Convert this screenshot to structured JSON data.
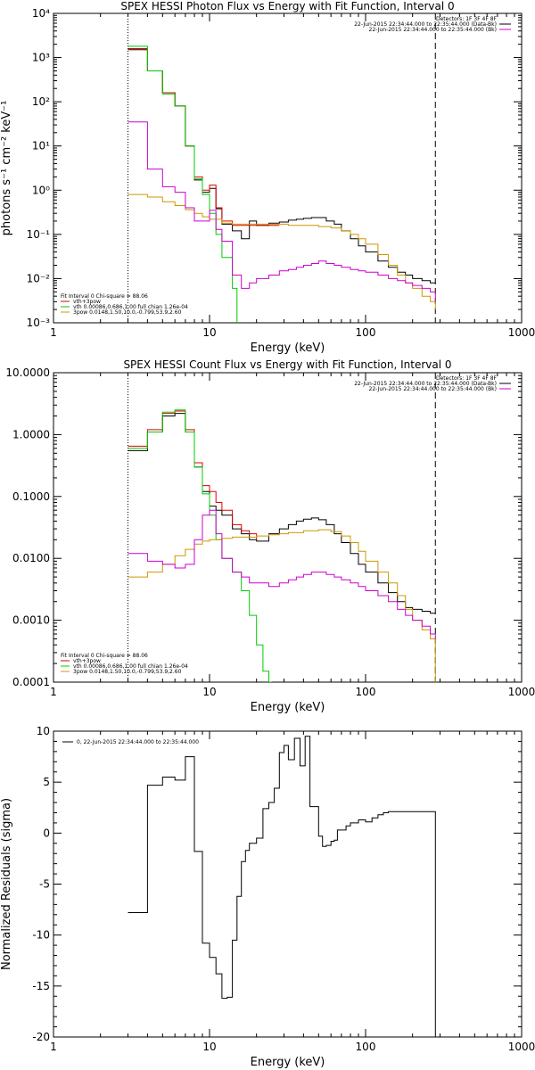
{
  "chart_data": [
    {
      "type": "line",
      "title": "SPEX HESSI Photon Flux vs Energy with Fit Function, Interval 0",
      "xlabel": "Energy (keV)",
      "ylabel": "photons s⁻¹ cm⁻² keV⁻¹",
      "xscale": "log",
      "yscale": "log",
      "xlim": [
        1,
        1000
      ],
      "ylim": [
        0.001,
        10000
      ],
      "xticks": [
        {
          "v": 1,
          "label": "1"
        },
        {
          "v": 10,
          "label": "10"
        },
        {
          "v": 100,
          "label": "100"
        },
        {
          "v": 1000,
          "label": "1000"
        }
      ],
      "yticks": [
        {
          "v": 0.001,
          "label": "10⁻³"
        },
        {
          "v": 0.01,
          "label": "10⁻²"
        },
        {
          "v": 0.1,
          "label": "10⁻¹"
        },
        {
          "v": 1,
          "label": "10⁰"
        },
        {
          "v": 10,
          "label": "10¹"
        },
        {
          "v": 100,
          "label": "10²"
        },
        {
          "v": 1000,
          "label": "10³"
        },
        {
          "v": 10000,
          "label": "10⁴"
        }
      ],
      "vlines": [
        {
          "x": 3,
          "style": "dotted"
        },
        {
          "x": 280,
          "style": "dashed"
        }
      ],
      "header_text": [
        "Detectors: 1F 3F 4F 8F",
        "22-Jun-2015 22:34:44.000 to 22:35:44.000 (Data-Bk)",
        "22-Jun-2015 22:34:44.000 to 22:35:44.000 (Bk)"
      ],
      "fit_text": [
        "Fit Interval 0   Chi-square = 88.06",
        "vth+3pow",
        "vth 0.00086,0.686,1.00  full chian 1.26e-04",
        "3pow 0.0148,1.50,10.0,-0.799,53.9,2.60"
      ],
      "series": [
        {
          "name": "",
          "color": "#000000",
          "x": [
            3,
            4,
            5,
            6,
            7,
            8,
            9,
            10,
            11,
            12,
            14,
            16,
            18,
            20,
            24,
            28,
            32,
            36,
            40,
            45,
            50,
            56,
            63,
            70,
            80,
            90,
            100,
            120,
            140,
            160,
            180,
            200,
            230,
            260,
            280
          ],
          "y": [
            1500,
            500,
            160,
            80,
            10,
            1.7,
            0.9,
            1.1,
            0.38,
            0.17,
            0.12,
            0.08,
            0.2,
            0.16,
            0.18,
            0.19,
            0.21,
            0.22,
            0.23,
            0.24,
            0.24,
            0.2,
            0.17,
            0.12,
            0.08,
            0.055,
            0.04,
            0.025,
            0.018,
            0.014,
            0.012,
            0.01,
            0.009,
            0.008,
            0.008
          ]
        },
        {
          "name": "",
          "color": "#dd0000",
          "x": [
            3,
            4,
            5,
            6,
            7,
            8,
            9,
            10,
            11,
            12,
            14,
            16,
            18,
            20,
            24,
            28
          ],
          "y": [
            1600,
            500,
            160,
            80,
            10,
            2,
            1.0,
            1.3,
            0.4,
            0.2,
            0.16,
            0.16,
            0.16,
            0.16,
            0.16,
            0.16
          ]
        },
        {
          "name": "",
          "color": "#00cc00",
          "x": [
            3,
            4,
            5,
            6,
            7,
            8,
            9,
            10,
            11,
            12,
            14,
            15
          ],
          "y": [
            1800,
            500,
            150,
            80,
            10,
            1.8,
            0.8,
            0.3,
            0.1,
            0.03,
            0.006,
            0.001
          ]
        },
        {
          "name": "",
          "color": "#cc9900",
          "x": [
            3,
            4,
            5,
            6,
            7,
            8,
            9,
            10,
            12,
            14,
            16,
            20,
            24,
            28,
            32,
            40,
            50,
            60,
            70,
            80,
            90,
            100,
            120,
            140,
            160,
            180,
            200,
            230,
            260,
            280
          ],
          "y": [
            0.8,
            0.7,
            0.55,
            0.45,
            0.36,
            0.3,
            0.25,
            0.22,
            0.18,
            0.17,
            0.17,
            0.17,
            0.17,
            0.17,
            0.16,
            0.16,
            0.15,
            0.14,
            0.12,
            0.1,
            0.08,
            0.06,
            0.035,
            0.02,
            0.012,
            0.008,
            0.006,
            0.004,
            0.003,
            0.002
          ]
        },
        {
          "name": "",
          "color": "#cc00cc",
          "x": [
            3,
            4,
            5,
            6,
            7,
            8,
            9,
            10,
            11,
            12,
            14,
            16,
            18,
            20,
            24,
            28,
            32,
            36,
            40,
            45,
            50,
            56,
            63,
            70,
            80,
            90,
            100,
            120,
            140,
            160,
            180,
            200,
            230,
            260,
            280
          ],
          "y": [
            35,
            3,
            1.2,
            0.9,
            0.4,
            0.2,
            0.2,
            0.35,
            0.13,
            0.07,
            0.012,
            0.006,
            0.008,
            0.01,
            0.012,
            0.015,
            0.016,
            0.018,
            0.02,
            0.022,
            0.025,
            0.022,
            0.02,
            0.018,
            0.016,
            0.015,
            0.014,
            0.012,
            0.01,
            0.009,
            0.008,
            0.007,
            0.006,
            0.005,
            0.003
          ]
        }
      ]
    },
    {
      "type": "line",
      "title": "SPEX HESSI Count Flux vs Energy with Fit Function, Interval 0",
      "xlabel": "Energy (keV)",
      "ylabel": "",
      "xscale": "log",
      "yscale": "log",
      "xlim": [
        1,
        1000
      ],
      "ylim": [
        0.0001,
        10
      ],
      "xticks": [
        {
          "v": 1,
          "label": "1"
        },
        {
          "v": 10,
          "label": "10"
        },
        {
          "v": 100,
          "label": "100"
        },
        {
          "v": 1000,
          "label": "1000"
        }
      ],
      "yticks": [
        {
          "v": 0.0001,
          "label": "0.0001"
        },
        {
          "v": 0.001,
          "label": "0.0010"
        },
        {
          "v": 0.01,
          "label": "0.0100"
        },
        {
          "v": 0.1,
          "label": "0.1000"
        },
        {
          "v": 1,
          "label": "1.0000"
        },
        {
          "v": 10,
          "label": "10.0000"
        }
      ],
      "vlines": [
        {
          "x": 3,
          "style": "dotted"
        },
        {
          "x": 280,
          "style": "dashed"
        }
      ],
      "header_text": [
        "Detectors: 1F 3F 4F 8F",
        "22-Jun-2015 22:34:44.000 to 22:35:44.000 (Data-Bk)",
        "22-Jun-2015 22:34:44.000 to 22:35:44.000 (Bk)"
      ],
      "fit_text": [
        "Fit Interval 0   Chi-square = 88.06",
        "vth+3pow",
        "vth 0.00086,0.686,1.00  full chian 1.26e-04",
        "3pow 0.0148,1.50,10.0,-0.799,53.9,2.60"
      ],
      "series": [
        {
          "name": "",
          "color": "#000000",
          "x": [
            3,
            4,
            5,
            6,
            7,
            8,
            9,
            10,
            11,
            12,
            14,
            16,
            18,
            20,
            24,
            28,
            32,
            36,
            40,
            45,
            50,
            56,
            63,
            70,
            80,
            90,
            100,
            120,
            140,
            160,
            180,
            200,
            230,
            260,
            280
          ],
          "y": [
            0.55,
            1.1,
            2.0,
            2.2,
            1.1,
            0.3,
            0.12,
            0.07,
            0.06,
            0.05,
            0.03,
            0.025,
            0.02,
            0.019,
            0.025,
            0.03,
            0.035,
            0.04,
            0.043,
            0.045,
            0.042,
            0.035,
            0.025,
            0.018,
            0.012,
            0.008,
            0.006,
            0.004,
            0.0028,
            0.002,
            0.0016,
            0.0015,
            0.0014,
            0.0013,
            0.0013
          ]
        },
        {
          "name": "",
          "color": "#dd0000",
          "x": [
            3,
            4,
            5,
            6,
            7,
            8,
            9,
            10,
            11,
            12,
            14,
            16,
            18,
            20
          ],
          "y": [
            0.65,
            1.2,
            2.2,
            2.4,
            1.2,
            0.35,
            0.15,
            0.12,
            0.08,
            0.06,
            0.035,
            0.028,
            0.025,
            0.02
          ]
        },
        {
          "name": "",
          "color": "#00cc00",
          "x": [
            3,
            4,
            5,
            6,
            7,
            8,
            9,
            10,
            11,
            12,
            14,
            16,
            18,
            20,
            22,
            24,
            25
          ],
          "y": [
            0.6,
            1.1,
            2.3,
            2.5,
            1.1,
            0.3,
            0.11,
            0.05,
            0.02,
            0.01,
            0.006,
            0.003,
            0.0012,
            0.0004,
            0.00015,
            0.0001,
            0.0001
          ]
        },
        {
          "name": "",
          "color": "#cc9900",
          "x": [
            3,
            4,
            5,
            6,
            7,
            8,
            9,
            10,
            12,
            14,
            16,
            20,
            24,
            28,
            32,
            40,
            50,
            60,
            70,
            80,
            90,
            100,
            120,
            140,
            160,
            180,
            200,
            230,
            260,
            280
          ],
          "y": [
            0.005,
            0.006,
            0.008,
            0.011,
            0.014,
            0.017,
            0.019,
            0.02,
            0.021,
            0.022,
            0.022,
            0.023,
            0.024,
            0.025,
            0.026,
            0.028,
            0.029,
            0.027,
            0.023,
            0.018,
            0.013,
            0.009,
            0.006,
            0.004,
            0.0025,
            0.0015,
            0.001,
            0.0007,
            0.0005,
            0.0001
          ]
        },
        {
          "name": "",
          "color": "#cc00cc",
          "x": [
            3,
            4,
            5,
            6,
            7,
            8,
            9,
            10,
            11,
            12,
            14,
            16,
            18,
            20,
            24,
            28,
            32,
            36,
            40,
            45,
            50,
            56,
            63,
            70,
            80,
            90,
            100,
            120,
            140,
            160,
            180,
            200,
            230,
            260,
            280
          ],
          "y": [
            0.012,
            0.009,
            0.008,
            0.007,
            0.008,
            0.02,
            0.05,
            0.06,
            0.025,
            0.01,
            0.006,
            0.005,
            0.004,
            0.004,
            0.0035,
            0.004,
            0.0045,
            0.005,
            0.0055,
            0.006,
            0.006,
            0.0055,
            0.005,
            0.0045,
            0.004,
            0.0035,
            0.003,
            0.0025,
            0.002,
            0.0015,
            0.0012,
            0.001,
            0.0008,
            0.0006,
            0.0005
          ]
        }
      ]
    },
    {
      "type": "line",
      "title": "",
      "xlabel": "Energy (keV)",
      "ylabel": "Normalized Residuals (sigma)",
      "xscale": "log",
      "yscale": "linear",
      "xlim": [
        1,
        1000
      ],
      "ylim": [
        -20,
        10
      ],
      "xticks": [
        {
          "v": 1,
          "label": "1"
        },
        {
          "v": 10,
          "label": "10"
        },
        {
          "v": 100,
          "label": "100"
        },
        {
          "v": 1000,
          "label": "1000"
        }
      ],
      "yticks": [
        {
          "v": -20,
          "label": "-20"
        },
        {
          "v": -15,
          "label": "-15"
        },
        {
          "v": -10,
          "label": "-10"
        },
        {
          "v": -5,
          "label": "-5"
        },
        {
          "v": 0,
          "label": "0"
        },
        {
          "v": 5,
          "label": "5"
        },
        {
          "v": 10,
          "label": "10"
        }
      ],
      "legend": "0, 22-Jun-2015 22:34:44.000 to 22:35:44.000",
      "series": [
        {
          "name": "0, 22-Jun-2015 22:34:44.000 to 22:35:44.000",
          "color": "#000000",
          "x": [
            3,
            4,
            5,
            6,
            7,
            8,
            9,
            10,
            11,
            12,
            13,
            14,
            15,
            16,
            17,
            18,
            20,
            22,
            24,
            26,
            28,
            30,
            32,
            35,
            38,
            41,
            44,
            47,
            50,
            53,
            56,
            60,
            63,
            66,
            70,
            75,
            80,
            90,
            100,
            110,
            120,
            130,
            140,
            150,
            160,
            170,
            180,
            200,
            230,
            260,
            280
          ],
          "y": [
            -7.8,
            4.7,
            5.5,
            5.2,
            7.5,
            -1.8,
            -10.8,
            -12.2,
            -13.8,
            -16.2,
            -16.1,
            -10.5,
            -6.2,
            -2.8,
            -1.7,
            -1.0,
            -0.5,
            2.4,
            3.0,
            4.4,
            7.9,
            8.6,
            7.2,
            9.3,
            6.6,
            9.5,
            2.6,
            2.6,
            -0.3,
            -1.3,
            -1.2,
            -0.8,
            -0.7,
            0.3,
            0.3,
            0.7,
            1.0,
            1.3,
            1.1,
            1.5,
            1.8,
            2.0,
            2.1,
            2.1,
            2.1,
            2.1,
            2.1,
            2.1,
            2.1,
            2.1,
            -20
          ]
        }
      ]
    }
  ]
}
